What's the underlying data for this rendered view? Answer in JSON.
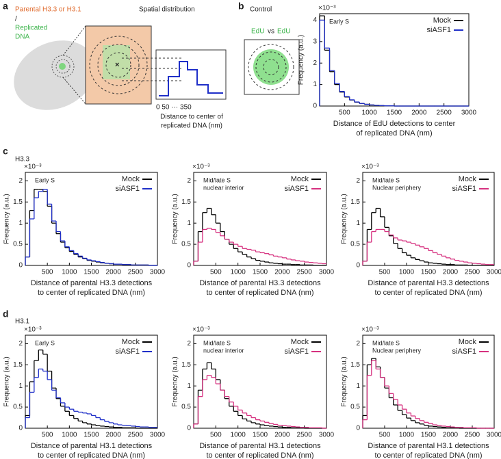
{
  "figure": {
    "panel_a": {
      "letter": "a",
      "legend_parental": "Parental H3.3 or H3.1",
      "legend_slash": "/",
      "legend_replicated": [
        "Replicated",
        "DNA"
      ],
      "heading": "Spatial distribution",
      "axis_ticks": "0 50  ···  350",
      "axis_label": [
        "Distance to center of",
        "replicated DNA (nm)"
      ]
    },
    "panel_b": {
      "letter": "b",
      "heading": "Control",
      "edu_left": "EdU",
      "edu_vs": "vs",
      "edu_right": "EdU"
    },
    "panel_c": {
      "letter": "c",
      "row_label": "H3.3"
    },
    "panel_d": {
      "letter": "d",
      "row_label": "H3.1"
    }
  },
  "chart_data": [
    {
      "type": "histogram",
      "annotation": [
        "Early S"
      ],
      "y_scale_label": "×10⁻³",
      "ylabel": "Frequency (a.u.)",
      "xlabel": [
        "Distance of EdU detections to center",
        "of replicated DNA (nm)"
      ],
      "bins": [
        0,
        100,
        200,
        300,
        400,
        500,
        600,
        700,
        800,
        900,
        1000,
        1100,
        1200,
        1300,
        1400,
        1500,
        1600,
        1700,
        1800,
        1900,
        2000,
        2100,
        2200,
        2300,
        2400,
        2500,
        2600,
        2700,
        2800,
        2900,
        3000
      ],
      "xlim": [
        0,
        3000
      ],
      "xticks": [
        500,
        1000,
        1500,
        2000,
        2500,
        3000
      ],
      "ylim": [
        0,
        4.3
      ],
      "yticks": [
        0,
        1,
        2,
        3,
        4
      ],
      "series": [
        {
          "name": "Mock",
          "color": "#000000",
          "values": [
            4.2,
            2.6,
            1.6,
            1.0,
            0.65,
            0.42,
            0.28,
            0.18,
            0.12,
            0.08,
            0.05,
            0.03,
            0.02,
            0.01,
            0.01,
            0,
            0,
            0,
            0,
            0,
            0,
            0,
            0,
            0,
            0,
            0,
            0,
            0,
            0,
            0
          ]
        },
        {
          "name": "siASF1",
          "color": "#1f2fc8",
          "values": [
            4.0,
            2.7,
            1.65,
            1.05,
            0.68,
            0.44,
            0.29,
            0.19,
            0.12,
            0.08,
            0.05,
            0.03,
            0.02,
            0.01,
            0.01,
            0,
            0,
            0,
            0,
            0,
            0,
            0,
            0,
            0,
            0,
            0,
            0,
            0,
            0,
            0
          ]
        }
      ]
    },
    {
      "type": "histogram",
      "annotation": [
        "Early S"
      ],
      "y_scale_label": "×10⁻³",
      "ylabel": "Frequency (a.u.)",
      "xlabel": [
        "Distance of parental H3.3 detections",
        "to center of replicated DNA (nm)"
      ],
      "bins": [
        0,
        100,
        200,
        300,
        400,
        500,
        600,
        700,
        800,
        900,
        1000,
        1100,
        1200,
        1300,
        1400,
        1500,
        1600,
        1700,
        1800,
        1900,
        2000,
        2100,
        2200,
        2300,
        2400,
        2500,
        2600,
        2700,
        2800,
        2900,
        3000
      ],
      "xlim": [
        0,
        3000
      ],
      "xticks": [
        500,
        1000,
        1500,
        2000,
        2500,
        3000
      ],
      "ylim": [
        0,
        2.2
      ],
      "yticks": [
        0,
        0.5,
        1,
        1.5,
        2
      ],
      "series": [
        {
          "name": "Mock",
          "color": "#000000",
          "values": [
            0.2,
            1.3,
            1.8,
            1.8,
            1.75,
            1.4,
            1.0,
            0.75,
            0.55,
            0.42,
            0.33,
            0.26,
            0.2,
            0.16,
            0.12,
            0.1,
            0.08,
            0.06,
            0.05,
            0.04,
            0.03,
            0.03,
            0.02,
            0.02,
            0.01,
            0.01,
            0.01,
            0.01,
            0,
            0
          ]
        },
        {
          "name": "siASF1",
          "color": "#1f2fc8",
          "values": [
            0.2,
            1.1,
            1.6,
            1.75,
            1.8,
            1.45,
            1.05,
            0.8,
            0.58,
            0.44,
            0.35,
            0.28,
            0.22,
            0.17,
            0.13,
            0.11,
            0.09,
            0.07,
            0.05,
            0.04,
            0.03,
            0.03,
            0.02,
            0.02,
            0.01,
            0.01,
            0.01,
            0.01,
            0,
            0
          ]
        }
      ]
    },
    {
      "type": "histogram",
      "annotation": [
        "Mid/late S",
        "nuclear interior"
      ],
      "y_scale_label": "×10⁻³",
      "ylabel": "Frequency (a.u.)",
      "xlabel": [
        "Distance of parental H3.3 detections",
        "to center of replicated DNA (nm)"
      ],
      "bins": [
        0,
        100,
        200,
        300,
        400,
        500,
        600,
        700,
        800,
        900,
        1000,
        1100,
        1200,
        1300,
        1400,
        1500,
        1600,
        1700,
        1800,
        1900,
        2000,
        2100,
        2200,
        2300,
        2400,
        2500,
        2600,
        2700,
        2800,
        2900,
        3000
      ],
      "xlim": [
        0,
        3000
      ],
      "xticks": [
        500,
        1000,
        1500,
        2000,
        2500,
        3000
      ],
      "ylim": [
        0,
        2.2
      ],
      "yticks": [
        0,
        0.5,
        1,
        1.5,
        2
      ],
      "series": [
        {
          "name": "Mock",
          "color": "#000000",
          "values": [
            0.1,
            0.8,
            1.25,
            1.35,
            1.2,
            1.0,
            0.8,
            0.62,
            0.5,
            0.4,
            0.32,
            0.26,
            0.2,
            0.16,
            0.12,
            0.1,
            0.08,
            0.06,
            0.05,
            0.04,
            0.03,
            0.03,
            0.02,
            0.02,
            0.01,
            0.01,
            0.01,
            0,
            0,
            0
          ]
        },
        {
          "name": "siASF1",
          "color": "#d6307f",
          "values": [
            0.1,
            0.55,
            0.85,
            0.88,
            0.85,
            0.78,
            0.7,
            0.62,
            0.55,
            0.5,
            0.45,
            0.4,
            0.38,
            0.36,
            0.32,
            0.3,
            0.28,
            0.25,
            0.22,
            0.2,
            0.18,
            0.15,
            0.13,
            0.11,
            0.1,
            0.08,
            0.07,
            0.06,
            0.05,
            0.04
          ]
        }
      ]
    },
    {
      "type": "histogram",
      "annotation": [
        "Mid/late S",
        "Nuclear periphery"
      ],
      "y_scale_label": "×10⁻³",
      "ylabel": "Frequency (a.u.)",
      "xlabel": [
        "Distance of parental H3.3 detections",
        "to center of replicated DNA (nm)"
      ],
      "bins": [
        0,
        100,
        200,
        300,
        400,
        500,
        600,
        700,
        800,
        900,
        1000,
        1100,
        1200,
        1300,
        1400,
        1500,
        1600,
        1700,
        1800,
        1900,
        2000,
        2100,
        2200,
        2300,
        2400,
        2500,
        2600,
        2700,
        2800,
        2900,
        3000
      ],
      "xlim": [
        0,
        3000
      ],
      "xticks": [
        500,
        1000,
        1500,
        2000,
        2500,
        3000
      ],
      "ylim": [
        0,
        2.2
      ],
      "yticks": [
        0,
        0.5,
        1,
        1.5,
        2
      ],
      "series": [
        {
          "name": "Mock",
          "color": "#000000",
          "values": [
            0.1,
            0.85,
            1.25,
            1.35,
            1.15,
            0.9,
            0.7,
            0.52,
            0.4,
            0.3,
            0.24,
            0.18,
            0.14,
            0.11,
            0.08,
            0.06,
            0.05,
            0.04,
            0.03,
            0.02,
            0.02,
            0.01,
            0.01,
            0.01,
            0,
            0,
            0,
            0,
            0,
            0
          ]
        },
        {
          "name": "siASF1",
          "color": "#d6307f",
          "values": [
            0.1,
            0.55,
            0.8,
            0.85,
            0.85,
            0.8,
            0.72,
            0.65,
            0.6,
            0.58,
            0.55,
            0.52,
            0.48,
            0.44,
            0.4,
            0.35,
            0.3,
            0.26,
            0.22,
            0.18,
            0.15,
            0.12,
            0.1,
            0.08,
            0.06,
            0.05,
            0.04,
            0.03,
            0.02,
            0.02
          ]
        }
      ]
    },
    {
      "type": "histogram",
      "annotation": [
        "Early S"
      ],
      "y_scale_label": "×10⁻³",
      "ylabel": "Frequency (a.u.)",
      "xlabel": [
        "Distance of parental H3.1 detections",
        "to center of replicated DNA (nm)"
      ],
      "bins": [
        0,
        100,
        200,
        300,
        400,
        500,
        600,
        700,
        800,
        900,
        1000,
        1100,
        1200,
        1300,
        1400,
        1500,
        1600,
        1700,
        1800,
        1900,
        2000,
        2100,
        2200,
        2300,
        2400,
        2500,
        2600,
        2700,
        2800,
        2900,
        3000
      ],
      "xlim": [
        0,
        3000
      ],
      "xticks": [
        500,
        1000,
        1500,
        2000,
        2500,
        3000
      ],
      "ylim": [
        0,
        2.2
      ],
      "yticks": [
        0,
        0.5,
        1,
        1.5,
        2
      ],
      "series": [
        {
          "name": "Mock",
          "color": "#000000",
          "values": [
            0.3,
            1.1,
            1.6,
            1.85,
            1.75,
            1.35,
            0.95,
            0.7,
            0.52,
            0.4,
            0.3,
            0.23,
            0.17,
            0.13,
            0.1,
            0.08,
            0.06,
            0.05,
            0.04,
            0.03,
            0.02,
            0.02,
            0.01,
            0.01,
            0.01,
            0,
            0,
            0,
            0,
            0
          ]
        },
        {
          "name": "siASF1",
          "color": "#1f2fc8",
          "values": [
            0.25,
            0.85,
            1.2,
            1.4,
            1.35,
            1.15,
            0.9,
            0.72,
            0.6,
            0.5,
            0.45,
            0.4,
            0.38,
            0.36,
            0.34,
            0.3,
            0.25,
            0.2,
            0.16,
            0.13,
            0.1,
            0.08,
            0.07,
            0.06,
            0.05,
            0.04,
            0.03,
            0.03,
            0.02,
            0.02
          ]
        }
      ]
    },
    {
      "type": "histogram",
      "annotation": [
        "Mid/late S",
        "nuclear interior"
      ],
      "y_scale_label": "×10⁻³",
      "ylabel": "Frequency (a.u.)",
      "xlabel": [
        "Distance of parental H3.1 detections",
        "to center of replicated DNA (nm)"
      ],
      "bins": [
        0,
        100,
        200,
        300,
        400,
        500,
        600,
        700,
        800,
        900,
        1000,
        1100,
        1200,
        1300,
        1400,
        1500,
        1600,
        1700,
        1800,
        1900,
        2000,
        2100,
        2200,
        2300,
        2400,
        2500,
        2600,
        2700,
        2800,
        2900,
        3000
      ],
      "xlim": [
        0,
        3000
      ],
      "xticks": [
        500,
        1000,
        1500,
        2000,
        2500,
        3000
      ],
      "ylim": [
        0,
        2.2
      ],
      "yticks": [
        0,
        0.5,
        1,
        1.5,
        2
      ],
      "series": [
        {
          "name": "Mock",
          "color": "#000000",
          "values": [
            0.1,
            0.9,
            1.4,
            1.55,
            1.4,
            1.15,
            0.9,
            0.7,
            0.52,
            0.4,
            0.3,
            0.22,
            0.17,
            0.13,
            0.1,
            0.08,
            0.06,
            0.05,
            0.04,
            0.03,
            0.02,
            0.02,
            0.01,
            0.01,
            0.01,
            0,
            0,
            0,
            0,
            0
          ]
        },
        {
          "name": "siASF1",
          "color": "#d6307f",
          "values": [
            0.1,
            0.75,
            1.15,
            1.25,
            1.2,
            1.05,
            0.9,
            0.75,
            0.62,
            0.52,
            0.43,
            0.36,
            0.3,
            0.25,
            0.2,
            0.17,
            0.14,
            0.11,
            0.09,
            0.07,
            0.06,
            0.05,
            0.04,
            0.03,
            0.02,
            0.02,
            0.01,
            0.01,
            0.01,
            0
          ]
        }
      ]
    },
    {
      "type": "histogram",
      "annotation": [
        "Mid/late S",
        "Nuclear periphery"
      ],
      "y_scale_label": "×10⁻³",
      "ylabel": "Frequency (a.u.)",
      "xlabel": [
        "Distance of parental H3.1 detections",
        "to center of replicated DNA (nm)"
      ],
      "bins": [
        0,
        100,
        200,
        300,
        400,
        500,
        600,
        700,
        800,
        900,
        1000,
        1100,
        1200,
        1300,
        1400,
        1500,
        1600,
        1700,
        1800,
        1900,
        2000,
        2100,
        2200,
        2300,
        2400,
        2500,
        2600,
        2700,
        2800,
        2900,
        3000
      ],
      "xlim": [
        0,
        3000
      ],
      "xticks": [
        500,
        1000,
        1500,
        2000,
        2500,
        3000
      ],
      "ylim": [
        0,
        2.2
      ],
      "yticks": [
        0,
        0.5,
        1,
        1.5,
        2
      ],
      "series": [
        {
          "name": "Mock",
          "color": "#000000",
          "values": [
            0.3,
            1.5,
            1.65,
            1.45,
            1.2,
            0.95,
            0.72,
            0.55,
            0.42,
            0.32,
            0.24,
            0.18,
            0.13,
            0.1,
            0.07,
            0.05,
            0.04,
            0.03,
            0.02,
            0.01,
            0.01,
            0.01,
            0,
            0,
            0,
            0,
            0,
            0,
            0,
            0
          ]
        },
        {
          "name": "siASF1",
          "color": "#d6307f",
          "values": [
            0.2,
            1.25,
            1.6,
            1.4,
            1.2,
            1.0,
            0.82,
            0.68,
            0.55,
            0.45,
            0.36,
            0.29,
            0.23,
            0.18,
            0.14,
            0.11,
            0.08,
            0.06,
            0.05,
            0.04,
            0.03,
            0.02,
            0.02,
            0.01,
            0.01,
            0.01,
            0,
            0,
            0,
            0
          ]
        }
      ]
    }
  ]
}
